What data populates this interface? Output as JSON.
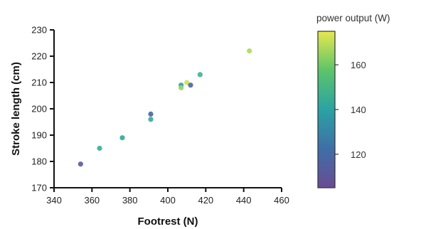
{
  "chart_data": {
    "type": "scatter",
    "xlabel": "Footrest (N)",
    "ylabel": "Stroke length (cm)",
    "xlim": [
      340,
      460
    ],
    "ylim": [
      170,
      230
    ],
    "xticks": [
      340,
      360,
      380,
      400,
      420,
      440,
      460
    ],
    "yticks": [
      170,
      180,
      190,
      200,
      210,
      220,
      230
    ],
    "grid": false,
    "colorbar": {
      "title": "power output (W)",
      "range": [
        105,
        175
      ],
      "ticks": [
        120,
        140,
        160
      ],
      "colors": [
        "#6a4c93",
        "#3e6fa8",
        "#2aa3a3",
        "#5cc46a",
        "#e6e84e"
      ]
    },
    "points": [
      {
        "x": 354,
        "y": 179,
        "c": 113
      },
      {
        "x": 364,
        "y": 185,
        "c": 145
      },
      {
        "x": 376,
        "y": 189,
        "c": 142
      },
      {
        "x": 391,
        "y": 198,
        "c": 118
      },
      {
        "x": 391,
        "y": 196,
        "c": 144
      },
      {
        "x": 407,
        "y": 209,
        "c": 140
      },
      {
        "x": 407,
        "y": 208,
        "c": 165
      },
      {
        "x": 410,
        "y": 210,
        "c": 172
      },
      {
        "x": 412,
        "y": 209,
        "c": 118
      },
      {
        "x": 417,
        "y": 213,
        "c": 148
      },
      {
        "x": 443,
        "y": 222,
        "c": 168
      }
    ]
  }
}
